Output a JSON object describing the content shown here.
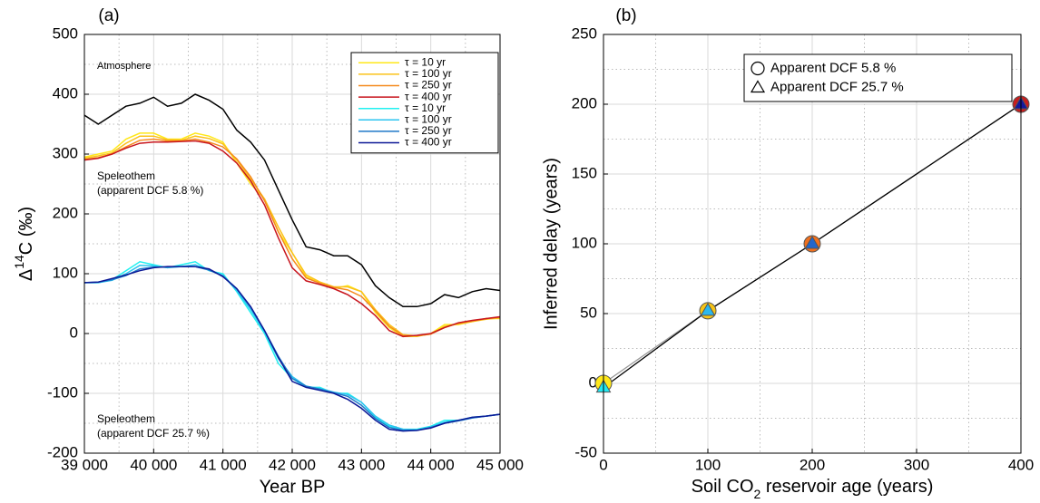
{
  "chart_data": [
    {
      "type": "line",
      "panel_label": "(a)",
      "xlabel": "Year BP",
      "ylabel": "Δ14C (‰)",
      "xlim": [
        39000,
        45000
      ],
      "xticks": [
        {
          "value": 39000,
          "label": "39 000"
        },
        {
          "value": 40000,
          "label": "40 000"
        },
        {
          "value": 41000,
          "label": "41 000"
        },
        {
          "value": 42000,
          "label": "42 000"
        },
        {
          "value": 43000,
          "label": "43 000"
        },
        {
          "value": 44000,
          "label": "44 000"
        },
        {
          "value": 45000,
          "label": "45 000"
        }
      ],
      "ylim": [
        -200,
        500
      ],
      "yticks": [
        -200,
        -100,
        0,
        100,
        200,
        300,
        400,
        500
      ],
      "grid": true,
      "minor_grid": true,
      "legend": "upper right",
      "x": [
        39000,
        39200,
        39400,
        39600,
        39800,
        40000,
        40200,
        40400,
        40600,
        40800,
        41000,
        41200,
        41400,
        41600,
        41800,
        42000,
        42200,
        42400,
        42600,
        42800,
        43000,
        43200,
        43400,
        43600,
        43800,
        44000,
        44200,
        44400,
        44600,
        44800,
        45000
      ],
      "series": [
        {
          "name": "Atmosphere",
          "color": "#000000",
          "in_legend": false,
          "values": [
            365,
            350,
            365,
            380,
            385,
            395,
            380,
            385,
            400,
            390,
            375,
            340,
            320,
            290,
            240,
            190,
            145,
            140,
            130,
            130,
            115,
            80,
            60,
            45,
            45,
            50,
            65,
            60,
            70,
            75,
            72
          ]
        },
        {
          "name": "τ = 10 yr",
          "color": "#ffe81a",
          "values": [
            295,
            300,
            305,
            325,
            335,
            335,
            325,
            325,
            335,
            330,
            320,
            285,
            250,
            225,
            170,
            135,
            95,
            85,
            75,
            80,
            70,
            35,
            10,
            -5,
            -5,
            0,
            15,
            15,
            20,
            25,
            25
          ]
        },
        {
          "name": "τ = 100 yr",
          "color": "#fbc21a",
          "values": [
            293,
            297,
            302,
            318,
            330,
            330,
            324,
            323,
            330,
            326,
            317,
            290,
            258,
            225,
            178,
            135,
            98,
            86,
            78,
            78,
            70,
            40,
            15,
            -2,
            -4,
            -1,
            12,
            16,
            20,
            24,
            26
          ]
        },
        {
          "name": "τ = 250 yr",
          "color": "#f58a1e",
          "values": [
            291,
            294,
            300,
            312,
            323,
            325,
            322,
            322,
            325,
            320,
            312,
            292,
            262,
            222,
            170,
            125,
            93,
            84,
            77,
            73,
            62,
            38,
            12,
            -3,
            -4,
            -1,
            10,
            17,
            21,
            25,
            27
          ]
        },
        {
          "name": "τ = 400 yr",
          "color": "#c8161e",
          "values": [
            290,
            293,
            300,
            310,
            318,
            320,
            320,
            321,
            322,
            318,
            305,
            285,
            255,
            215,
            160,
            110,
            88,
            82,
            75,
            65,
            50,
            30,
            5,
            -5,
            -3,
            0,
            10,
            18,
            22,
            25,
            28
          ]
        },
        {
          "name": "τ = 10 yr",
          "color": "#22f0f0",
          "values": [
            85,
            85,
            90,
            105,
            120,
            115,
            110,
            115,
            120,
            105,
            100,
            70,
            35,
            0,
            -50,
            -75,
            -90,
            -90,
            -100,
            -100,
            -115,
            -140,
            -155,
            -160,
            -160,
            -155,
            -145,
            -145,
            -140,
            -138,
            -135
          ]
        },
        {
          "name": "τ = 100 yr",
          "color": "#2cc4f0",
          "values": [
            85,
            85,
            89,
            100,
            114,
            113,
            110,
            112,
            115,
            106,
            97,
            72,
            40,
            3,
            -42,
            -72,
            -88,
            -92,
            -98,
            -102,
            -115,
            -138,
            -153,
            -160,
            -161,
            -156,
            -148,
            -145,
            -141,
            -138,
            -135
          ]
        },
        {
          "name": "τ = 250 yr",
          "color": "#1f78c8",
          "values": [
            85,
            86,
            90,
            97,
            108,
            111,
            111,
            112,
            112,
            106,
            96,
            75,
            44,
            5,
            -38,
            -75,
            -88,
            -93,
            -99,
            -105,
            -120,
            -142,
            -157,
            -162,
            -162,
            -157,
            -150,
            -146,
            -141,
            -138,
            -135
          ]
        },
        {
          "name": "τ = 400 yr",
          "color": "#0c1896",
          "values": [
            85,
            86,
            92,
            98,
            105,
            110,
            112,
            112,
            112,
            108,
            95,
            75,
            45,
            5,
            -40,
            -80,
            -90,
            -95,
            -100,
            -110,
            -125,
            -145,
            -160,
            -163,
            -162,
            -158,
            -150,
            -145,
            -140,
            -138,
            -135
          ]
        }
      ],
      "annotations": [
        {
          "lines": [
            "Speleothem",
            "(apparent DCF 5.8 %)"
          ],
          "color": "#f07a3c"
        },
        {
          "lines": [
            "Speleothem",
            "(apparent DCF 25.7 %)"
          ],
          "color": "#4a1ed2"
        }
      ]
    },
    {
      "type": "scatter",
      "panel_label": "(b)",
      "xlabel": "Soil CO2 reservoir age (years)",
      "ylabel": "Inferred delay (years)",
      "xlim": [
        0,
        400
      ],
      "xticks": [
        0,
        100,
        200,
        300,
        400
      ],
      "ylim": [
        -50,
        250
      ],
      "yticks": [
        -50,
        0,
        50,
        100,
        150,
        200,
        250
      ],
      "grid": true,
      "minor_grid": true,
      "legend": "upper right",
      "series": [
        {
          "name": "Apparent DCF 5.8 %",
          "marker": "circle",
          "line_color": "#999999",
          "x": [
            0,
            100,
            200,
            400
          ],
          "values": [
            0,
            52,
            100,
            200
          ],
          "colors": [
            "#ffe81a",
            "#f7c416",
            "#f0701e",
            "#c81e1e"
          ]
        },
        {
          "name": "Apparent DCF 25.7 %",
          "marker": "triangle",
          "line_color": "#000000",
          "x": [
            0,
            100,
            200,
            400
          ],
          "values": [
            -3,
            52,
            100,
            200
          ],
          "colors": [
            "#22e8f0",
            "#2cb8ee",
            "#2266cc",
            "#14189e"
          ]
        }
      ]
    }
  ]
}
